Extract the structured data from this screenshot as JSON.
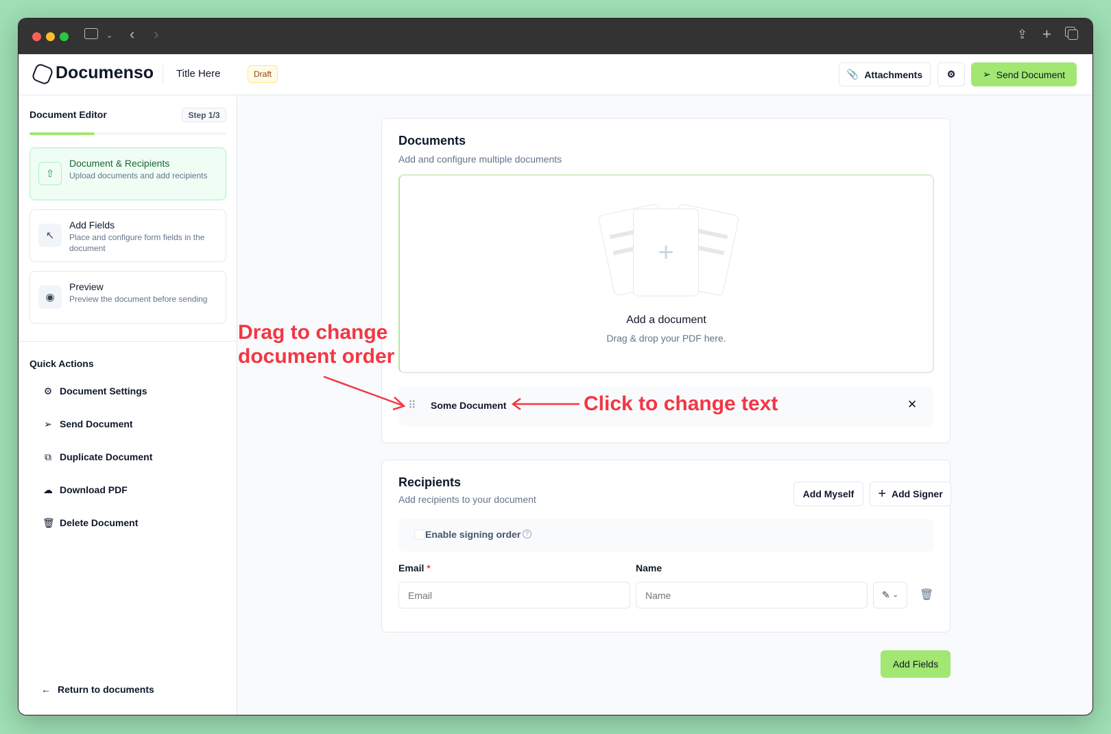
{
  "colors": {
    "accent": "#a2e771",
    "annotation": "#f43644",
    "background": "#9fe0b5"
  },
  "browser": {
    "icons": [
      "sidebar-toggle-icon",
      "chevron-down-icon",
      "back-icon",
      "forward-icon",
      "share-icon",
      "new-tab-icon",
      "tabs-overview-icon"
    ]
  },
  "header": {
    "brand": "Documenso",
    "doc_title": "Title Here",
    "status_badge": "Draft",
    "attachments_label": "Attachments",
    "send_label": "Send Document"
  },
  "sidebar": {
    "title": "Document Editor",
    "step_badge": "Step 1/3",
    "progress_percent": 33,
    "steps": [
      {
        "title": "Document & Recipients",
        "desc": "Upload documents and add recipients",
        "icon": "upload-icon",
        "active": true
      },
      {
        "title": "Add Fields",
        "desc": "Place and configure form fields in the document",
        "icon": "cursor-icon"
      },
      {
        "title": "Preview",
        "desc": "Preview the document before sending",
        "icon": "eye-icon"
      }
    ],
    "quick_actions_title": "Quick Actions",
    "quick_actions": [
      {
        "label": "Document Settings",
        "icon": "gear-icon"
      },
      {
        "label": "Send Document",
        "icon": "send-icon"
      },
      {
        "label": "Duplicate Document",
        "icon": "duplicate-icon"
      },
      {
        "label": "Download PDF",
        "icon": "cloud-download-icon"
      },
      {
        "label": "Delete Document",
        "icon": "trash-icon"
      }
    ],
    "return_label": "Return to documents"
  },
  "documents": {
    "title": "Documents",
    "subtitle": "Add and configure multiple documents",
    "drop_title": "Add a document",
    "drop_sub": "Drag & drop your PDF here.",
    "items": [
      {
        "name": "Some Document"
      }
    ]
  },
  "annotations": {
    "drag": [
      "Drag to change",
      "document order"
    ],
    "click": "Click to change text"
  },
  "recipients": {
    "title": "Recipients",
    "subtitle": "Add recipients to your document",
    "add_myself": "Add Myself",
    "add_signer": "Add Signer",
    "signing_order_label": "Enable signing order",
    "signing_order_checked": false,
    "email_label": "Email",
    "required_mark": "*",
    "name_label": "Name",
    "email_placeholder": "Email",
    "name_placeholder": "Name",
    "email_value": "",
    "name_value": ""
  },
  "footer": {
    "add_fields_label": "Add Fields"
  }
}
